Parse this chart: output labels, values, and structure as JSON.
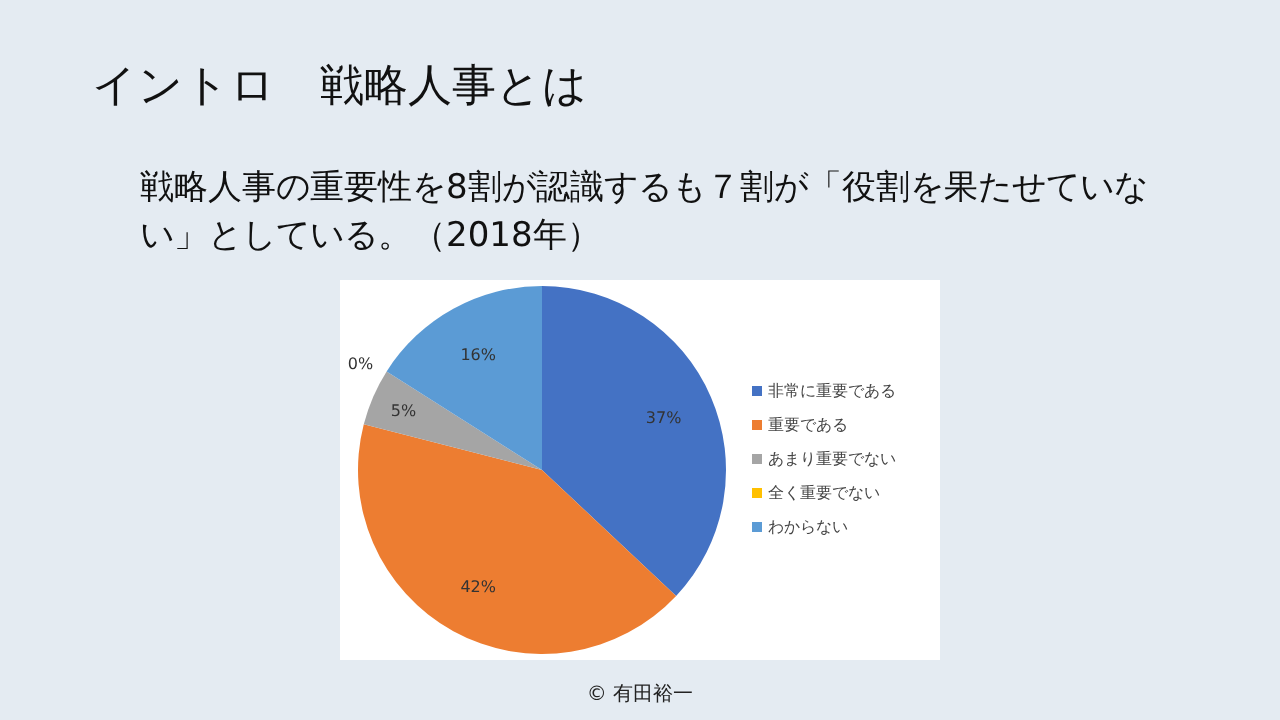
{
  "chart_data": {
    "type": "pie",
    "title": "イントロ　戦略人事とは",
    "subtitle": "戦略人事の重要性を8割が認識するも７割が「役割を果たせていない」としている。（2018年）",
    "categories": [
      "非常に重要である",
      "重要である",
      "あまり重要でない",
      "全く重要でない",
      "わからない"
    ],
    "values": [
      37,
      42,
      5,
      0,
      16
    ],
    "value_labels": [
      "37%",
      "42%",
      "5%",
      "0%",
      "16%"
    ],
    "colors": [
      "#4472c4",
      "#ed7d31",
      "#a5a5a5",
      "#ffc000",
      "#5b9bd5"
    ],
    "legend": "right",
    "annotations": [
      "© 有田裕一"
    ]
  }
}
